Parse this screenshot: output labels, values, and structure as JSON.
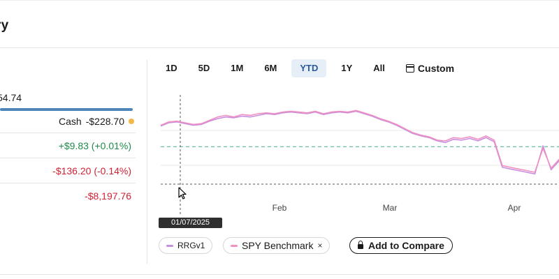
{
  "header": {
    "title": "ry"
  },
  "summary": {
    "total_value": "54.74",
    "cash_label": "Cash",
    "cash_value": "-$228.70",
    "cash_dot_color": "#f2b84b",
    "day_change": "+$9.83 (+0.01%)",
    "total_change": "-$136.20 (-0.14%)",
    "realized": "-$8,197.76",
    "positive_color": "#1f8a4c",
    "negative_color": "#cf2234"
  },
  "timeframes": {
    "items": [
      "1D",
      "5D",
      "1M",
      "6M",
      "YTD",
      "1Y",
      "All"
    ],
    "active": "YTD",
    "custom_label": "Custom"
  },
  "chart_data": {
    "type": "line",
    "x_tick_labels": [
      "Feb",
      "Mar",
      "Apr"
    ],
    "hover_date": "01/07/2025",
    "series": [
      {
        "name": "RRGv1",
        "color": "#c78ee0",
        "values": [
          100.2,
          100.6,
          100.7,
          100.5,
          100.3,
          100.4,
          100.8,
          101.1,
          101.3,
          101.2,
          101.4,
          101.3,
          101.5,
          101.7,
          101.6,
          101.8,
          101.9,
          101.8,
          101.7,
          101.9,
          101.6,
          101.8,
          101.9,
          101.8,
          102.0,
          101.7,
          101.4,
          101.0,
          100.7,
          100.3,
          99.8,
          99.3,
          99.0,
          98.8,
          98.4,
          98.2,
          98.6,
          98.5,
          98.7,
          98.4,
          98.8,
          98.3,
          95.2,
          95.0,
          94.8,
          94.6,
          94.4,
          97.8,
          94.9,
          96.0,
          96.7
        ]
      },
      {
        "name": "SPY Benchmark",
        "color": "#f08fc0",
        "values": [
          100.3,
          100.7,
          100.8,
          100.6,
          100.4,
          100.5,
          100.9,
          101.3,
          101.5,
          101.3,
          101.6,
          101.5,
          101.7,
          101.8,
          101.7,
          101.9,
          102.0,
          101.9,
          101.8,
          102.0,
          101.7,
          101.9,
          102.0,
          101.9,
          102.1,
          101.8,
          101.5,
          101.1,
          100.8,
          100.4,
          99.9,
          99.4,
          99.1,
          98.9,
          98.5,
          98.4,
          98.8,
          98.7,
          98.9,
          98.6,
          99.0,
          98.5,
          95.4,
          95.2,
          95.0,
          94.8,
          94.6,
          97.5,
          95.1,
          96.2,
          96.9
        ]
      }
    ],
    "reference_line_color": "#5ab596",
    "reference_value": 97.7
  },
  "legend": {
    "portfolio_label": "RRGv1",
    "portfolio_color": "#c78ee0",
    "benchmark_label": "SPY Benchmark",
    "benchmark_color": "#f08fc0",
    "remove_symbol": "×",
    "compare_label": "Add to Compare"
  }
}
